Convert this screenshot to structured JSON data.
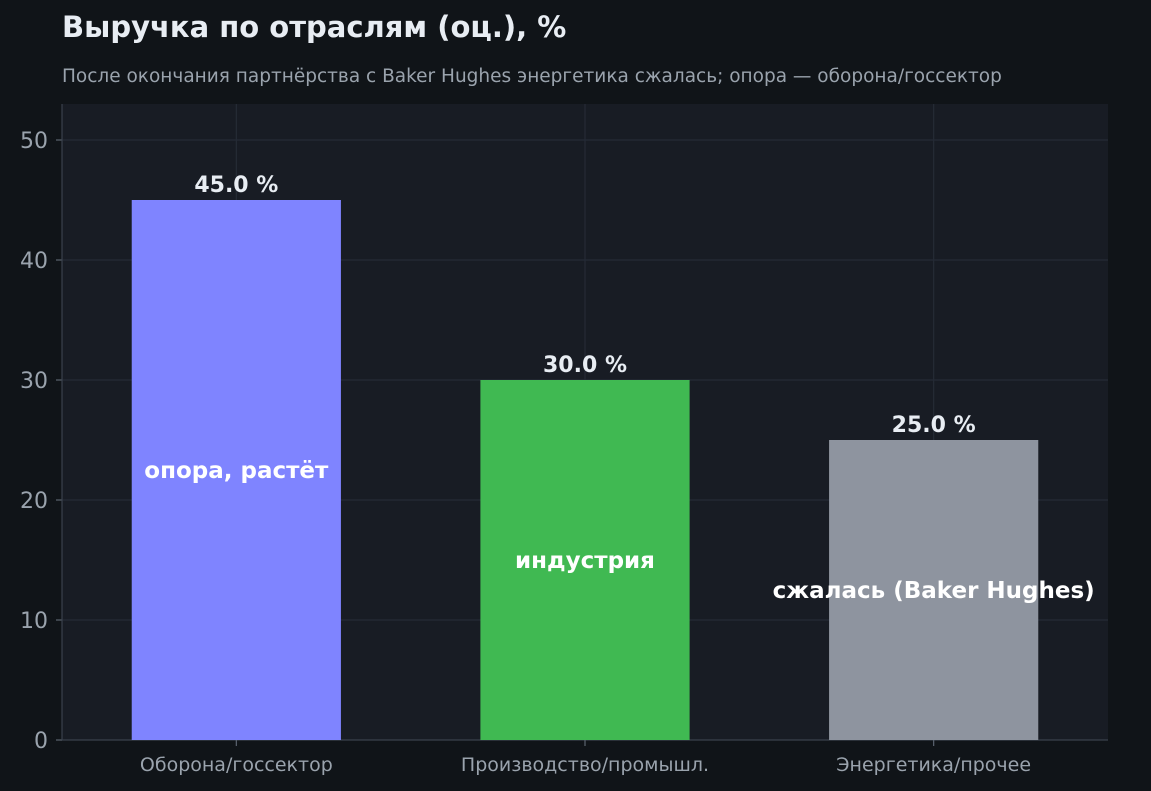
{
  "chart_data": {
    "type": "bar",
    "title": "Выручка по отраслям (оц.), %",
    "subtitle": "После окончания партнёрства с Baker Hughes энергетика сжалась; опора — оборона/госсектор",
    "xlabel": "",
    "ylabel": "",
    "ylim": [
      0,
      53
    ],
    "yticks": [
      0,
      10,
      20,
      30,
      40,
      50
    ],
    "grid": true,
    "categories": [
      "Оборона/госсектор",
      "Производство/промышл.",
      "Энергетика/прочее"
    ],
    "values": [
      45.0,
      30.0,
      25.0
    ],
    "value_labels": [
      "45.0 %",
      "30.0 %",
      "25.0 %"
    ],
    "annotations": [
      "опора, растёт",
      "индустрия",
      "сжалась (Baker Hughes)"
    ],
    "annotation_levels": [
      22.5,
      15,
      12.5
    ],
    "colors": [
      "#7f84ff",
      "#40b952",
      "#8e949f"
    ],
    "background": "#101418",
    "plot_background": "#181c24",
    "grid_color": "#252b36",
    "text_color": "#e8edf3",
    "muted_text_color": "#9aa3ad"
  }
}
